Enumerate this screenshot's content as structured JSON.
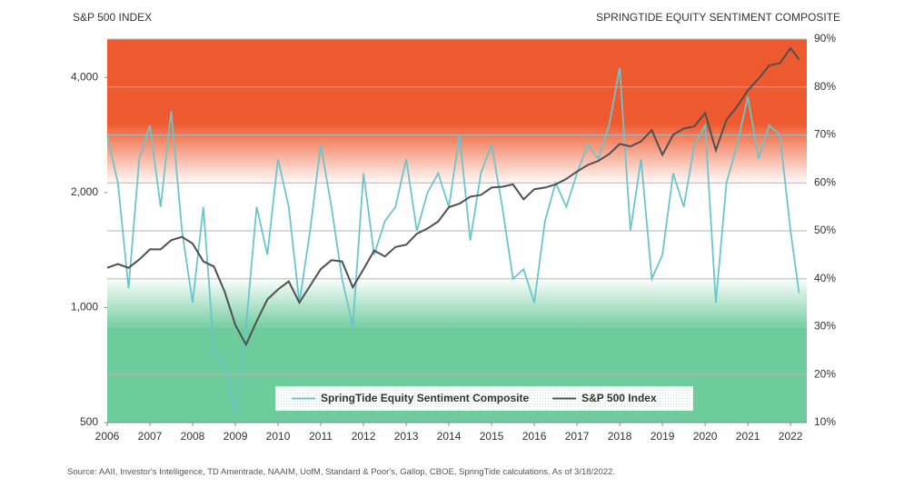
{
  "chart_data": {
    "type": "line",
    "title_left": "S&P 500 INDEX",
    "title_right": "SPRINGTIDE EQUITY SENTIMENT COMPOSITE",
    "source": "Source: AAII, Investor's Intelligence, TD Ameritrade, NAAIM, UofM, Standard & Poor's, Gallop, CBOE, SpringTide calculations. As of 3/18/2022.",
    "x": [
      2006,
      2006.25,
      2006.5,
      2006.75,
      2007,
      2007.25,
      2007.5,
      2007.75,
      2008,
      2008.25,
      2008.5,
      2008.75,
      2009,
      2009.25,
      2009.5,
      2009.75,
      2010,
      2010.25,
      2010.5,
      2010.75,
      2011,
      2011.25,
      2011.5,
      2011.75,
      2012,
      2012.25,
      2012.5,
      2012.75,
      2013,
      2013.25,
      2013.5,
      2013.75,
      2014,
      2014.25,
      2014.5,
      2014.75,
      2015,
      2015.25,
      2015.5,
      2015.75,
      2016,
      2016.25,
      2016.5,
      2016.75,
      2017,
      2017.25,
      2017.5,
      2017.75,
      2018,
      2018.25,
      2018.5,
      2018.75,
      2019,
      2019.25,
      2019.5,
      2019.75,
      2020,
      2020.25,
      2020.5,
      2020.75,
      2021,
      2021.25,
      2021.5,
      2021.75,
      2022,
      2022.2
    ],
    "xlim": [
      2006,
      2022.38
    ],
    "xticks": [
      2006,
      2007,
      2008,
      2009,
      2010,
      2011,
      2012,
      2013,
      2014,
      2015,
      2016,
      2017,
      2018,
      2019,
      2020,
      2021,
      2022
    ],
    "ylim": [
      500,
      5040
    ],
    "ylog": true,
    "yticks": [
      500,
      {
        "value": 1000,
        "label": "1,000"
      },
      {
        "value": 2000,
        "label": "2,000"
      },
      {
        "value": 4000,
        "label": "4,000"
      }
    ],
    "y2lim": [
      10,
      90
    ],
    "y2ticks": [
      {
        "value": 10,
        "label": "10%"
      },
      {
        "value": 20,
        "label": "20%"
      },
      {
        "value": 30,
        "label": "30%"
      },
      {
        "value": 40,
        "label": "40%"
      },
      {
        "value": 50,
        "label": "50%"
      },
      {
        "value": 60,
        "label": "60%"
      },
      {
        "value": 70,
        "label": "70%"
      },
      {
        "value": 80,
        "label": "80%"
      },
      {
        "value": 90,
        "label": "90%"
      }
    ],
    "grid": true,
    "legend": "bottom",
    "series": [
      {
        "name": "SpringTide Equity Sentiment Composite",
        "color": "#6cc5cb",
        "axis": "y2",
        "values": [
          70,
          60,
          38,
          65,
          72,
          55,
          75,
          50,
          35,
          55,
          25,
          22,
          12,
          30,
          55,
          45,
          65,
          55,
          35,
          50,
          68,
          55,
          40,
          30,
          62,
          45,
          52,
          55,
          65,
          50,
          58,
          62,
          55,
          70,
          48,
          62,
          68,
          55,
          40,
          42,
          35,
          52,
          60,
          55,
          62,
          68,
          65,
          72,
          84,
          50,
          65,
          40,
          45,
          62,
          55,
          68,
          72,
          35,
          60,
          68,
          78,
          65,
          72,
          70,
          50,
          37
        ]
      },
      {
        "name": "S&P 500 Index",
        "color": "#505050",
        "values": [
          1270,
          1300,
          1270,
          1335,
          1420,
          1420,
          1500,
          1530,
          1470,
          1320,
          1280,
          1100,
          900,
          800,
          920,
          1050,
          1115,
          1170,
          1030,
          1140,
          1260,
          1330,
          1320,
          1130,
          1260,
          1410,
          1360,
          1440,
          1460,
          1560,
          1610,
          1680,
          1830,
          1870,
          1950,
          1970,
          2060,
          2070,
          2100,
          1920,
          2040,
          2060,
          2100,
          2170,
          2270,
          2360,
          2420,
          2520,
          2680,
          2640,
          2720,
          2910,
          2510,
          2830,
          2940,
          2980,
          3230,
          2580,
          3100,
          3360,
          3700,
          3970,
          4300,
          4360,
          4770,
          4460
        ]
      }
    ]
  }
}
